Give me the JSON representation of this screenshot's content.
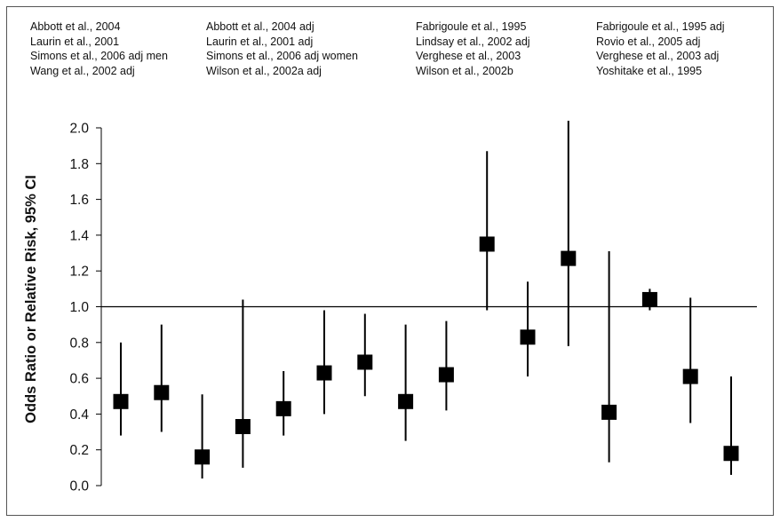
{
  "legend": {
    "columns": [
      [
        "Abbott et al., 2004",
        "Laurin et al., 2001",
        "Simons et al., 2006 adj men",
        "Wang et al., 2002 adj"
      ],
      [
        "Abbott et al., 2004 adj",
        "Laurin et al., 2001 adj",
        "Simons et al., 2006 adj women",
        "Wilson et al., 2002a adj"
      ],
      [
        "Fabrigoule et al., 1995",
        "Lindsay et al., 2002 adj",
        "Verghese et al., 2003",
        "Wilson et al., 2002b"
      ],
      [
        "Fabrigoule et al., 1995 adj",
        "Rovio et al., 2005 adj",
        "Verghese et al., 2003 adj",
        "Yoshitake et al., 1995"
      ]
    ]
  },
  "chart_data": {
    "type": "scatter",
    "ylabel": "Odds Ratio or Relative Risk, 95% CI",
    "ylim": [
      0.0,
      2.0
    ],
    "yticks": [
      "0.0",
      "0.2",
      "0.4",
      "0.6",
      "0.8",
      "1.0",
      "1.2",
      "1.4",
      "1.6",
      "1.8",
      "2.0"
    ],
    "reference_line": 1.0,
    "grid": false,
    "marker_color": "#000000",
    "points": [
      {
        "estimate": 0.47,
        "lower": 0.28,
        "upper": 0.8
      },
      {
        "estimate": 0.52,
        "lower": 0.3,
        "upper": 0.9
      },
      {
        "estimate": 0.16,
        "lower": 0.04,
        "upper": 0.51
      },
      {
        "estimate": 0.33,
        "lower": 0.1,
        "upper": 1.04
      },
      {
        "estimate": 0.43,
        "lower": 0.28,
        "upper": 0.64
      },
      {
        "estimate": 0.63,
        "lower": 0.4,
        "upper": 0.98
      },
      {
        "estimate": 0.69,
        "lower": 0.5,
        "upper": 0.96
      },
      {
        "estimate": 0.47,
        "lower": 0.25,
        "upper": 0.9
      },
      {
        "estimate": 0.62,
        "lower": 0.42,
        "upper": 0.92
      },
      {
        "estimate": 1.35,
        "lower": 0.98,
        "upper": 1.87
      },
      {
        "estimate": 0.83,
        "lower": 0.61,
        "upper": 1.14
      },
      {
        "estimate": 1.27,
        "lower": 0.78,
        "upper": 2.04
      },
      {
        "estimate": 0.41,
        "lower": 0.13,
        "upper": 1.31
      },
      {
        "estimate": 1.04,
        "lower": 0.98,
        "upper": 1.1
      },
      {
        "estimate": 0.61,
        "lower": 0.35,
        "upper": 1.05
      },
      {
        "estimate": 0.18,
        "lower": 0.06,
        "upper": 0.61
      }
    ]
  }
}
